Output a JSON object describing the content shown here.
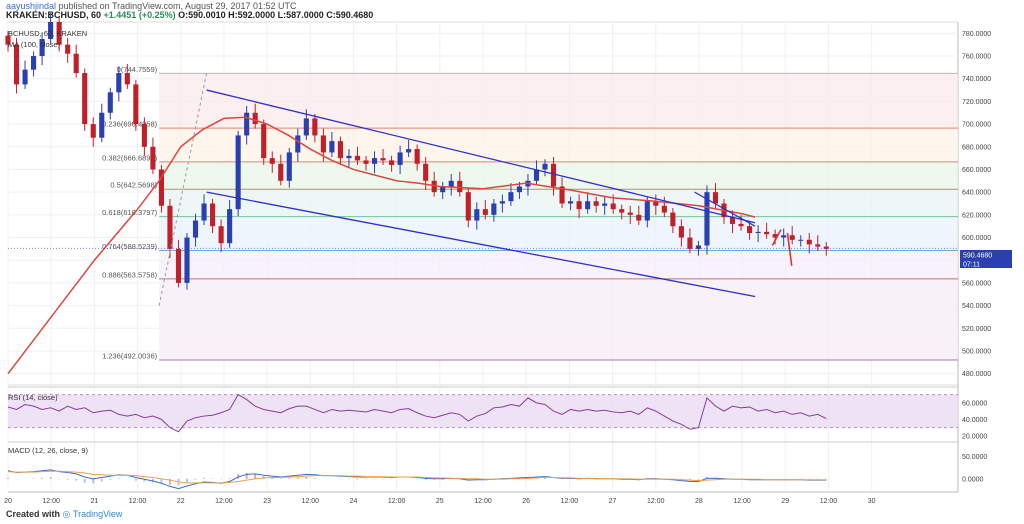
{
  "header": {
    "user": "aayushjindal",
    "published": "published on TradingView.com, August 29, 2017 01:52 UTC",
    "symbol": "KRAKEN:BCHUSD, 60",
    "change": "+1.4451 (+0.25%)",
    "ohlc": "O:590.0010 H:592.0000 L:587.0000 C:590.4680"
  },
  "legend": {
    "main": "BCHUSD, 60, KRAKEN",
    "ma": "MA (100, close)"
  },
  "price_badges": {
    "last": "590.4680",
    "timer": "07:11"
  },
  "footer": {
    "label": "Created with",
    "brand": "TradingView"
  },
  "colors": {
    "up": "#2a3fb0",
    "down": "#c0202a",
    "ma": "#e0453c",
    "channel": "#2d2dd4",
    "rsi": "#8a3a9e",
    "rsi_band": "#eadcf3",
    "macd": "#3a6fd0",
    "signal": "#f0a040"
  },
  "chart_data": [
    {
      "type": "candlestick",
      "title": "BCHUSD, 60, KRAKEN",
      "x_ticks": [
        "20",
        "12:00",
        "21",
        "12:00",
        "22",
        "12:00",
        "23",
        "12:00",
        "24",
        "12:00",
        "25",
        "12:00",
        "26",
        "12:00",
        "27",
        "12:00",
        "28",
        "12:00",
        "29",
        "12:00",
        "30"
      ],
      "y_ticks": [
        480,
        500,
        520,
        540,
        560,
        580,
        600,
        620,
        640,
        660,
        680,
        700,
        720,
        740,
        760,
        780
      ],
      "y_tick_labels": [
        "480.0000",
        "500.0000",
        "520.0000",
        "540.0000",
        "560.0000",
        "580.0000",
        "600.0000",
        "620.0000",
        "640.0000",
        "660.0000",
        "680.0000",
        "700.0000",
        "720.0000",
        "740.0000",
        "760.0000",
        "780.0000"
      ],
      "ylim": [
        470,
        790
      ],
      "xlim": [
        0,
        22
      ],
      "fib_levels": [
        {
          "ratio": "0",
          "value": 744.7559,
          "label": "0(744.7559)"
        },
        {
          "ratio": "0.236",
          "value": 696.4958,
          "label": "0.236(696.4958)"
        },
        {
          "ratio": "0.382",
          "value": 666.6899,
          "label": "0.382(666.6899)"
        },
        {
          "ratio": "0.5",
          "value": 642.5698,
          "label": "0.5(642.5698)"
        },
        {
          "ratio": "0.618",
          "value": 618.3797,
          "label": "0.618(618.3797)"
        },
        {
          "ratio": "0.764",
          "value": 588.5239,
          "label": "0.764(588.5239)"
        },
        {
          "ratio": "0.886",
          "value": 563.5758,
          "label": "0.886(563.5758)"
        },
        {
          "ratio": "1.236",
          "value": 492.0036,
          "label": "1.236(492.0036)"
        }
      ],
      "close": [
        770,
        735,
        748,
        760,
        775,
        790,
        770,
        762,
        745,
        700,
        688,
        710,
        728,
        745,
        735,
        700,
        680,
        660,
        628,
        590,
        560,
        600,
        615,
        630,
        610,
        595,
        625,
        690,
        710,
        700,
        670,
        665,
        650,
        675,
        690,
        705,
        690,
        675,
        685,
        670,
        672,
        668,
        665,
        670,
        668,
        664,
        675,
        678,
        665,
        650,
        640,
        645,
        650,
        640,
        615,
        625,
        620,
        630,
        632,
        640,
        645,
        650,
        660,
        665,
        645,
        630,
        632,
        625,
        632,
        628,
        630,
        625,
        622,
        620,
        615,
        632,
        628,
        622,
        610,
        600,
        590,
        593,
        640,
        630,
        618,
        612,
        610,
        604,
        605,
        603,
        600,
        602,
        598,
        598,
        594,
        592,
        590
      ],
      "candle_x_range": [
        0.0,
        18.95
      ],
      "ma100": {
        "x": [
          0.0,
          2.0,
          3.0,
          3.5,
          4.0,
          4.5,
          5.0,
          5.5,
          6.0,
          6.5,
          7.0,
          7.5,
          8.0,
          8.5,
          9.0,
          9.5,
          10.0,
          11.0,
          12.0,
          13.0,
          14.0,
          15.0,
          16.0,
          17.0,
          17.3
        ],
        "y": [
          480,
          580,
          625,
          650,
          680,
          695,
          705,
          706,
          700,
          690,
          678,
          668,
          660,
          655,
          650,
          648,
          645,
          643,
          648,
          642,
          635,
          632,
          628,
          621,
          618
        ]
      },
      "channel_upper": {
        "x": [
          4.6,
          17.3
        ],
        "y": [
          730,
          613
        ]
      },
      "channel_lower": {
        "x": [
          4.6,
          17.3
        ],
        "y": [
          640,
          548
        ]
      },
      "dashed_trend": {
        "x": [
          3.5,
          4.6
        ],
        "y": [
          540,
          745
        ]
      },
      "arrows": [
        {
          "x": [
            17.7,
            17.9
          ],
          "y": [
            593,
            607
          ]
        },
        {
          "x": [
            18.05,
            18.15
          ],
          "y": [
            604,
            575
          ]
        }
      ]
    },
    {
      "type": "line",
      "title": "RSI (14, close)",
      "y_ticks": [
        20,
        40,
        60
      ],
      "y_tick_labels": [
        "20.0000",
        "40.0000",
        "60.0000"
      ],
      "ylim": [
        15,
        78
      ],
      "band": [
        30,
        70
      ],
      "values": [
        55,
        52,
        58,
        56,
        52,
        54,
        50,
        56,
        52,
        54,
        48,
        50,
        51,
        46,
        44,
        46,
        42,
        44,
        40,
        30,
        25,
        38,
        42,
        44,
        45,
        48,
        52,
        70,
        64,
        56,
        52,
        50,
        48,
        53,
        56,
        56,
        52,
        48,
        52,
        50,
        51,
        50,
        49,
        52,
        50,
        48,
        52,
        53,
        48,
        44,
        42,
        45,
        48,
        46,
        38,
        44,
        47,
        54,
        55,
        58,
        56,
        66,
        60,
        58,
        50,
        46,
        52,
        50,
        52,
        50,
        51,
        49,
        48,
        50,
        46,
        54,
        50,
        44,
        38,
        34,
        28,
        30,
        66,
        56,
        50,
        56,
        54,
        55,
        50,
        52,
        48,
        50,
        46,
        48,
        44,
        46,
        41
      ]
    },
    {
      "type": "line",
      "title": "MACD (12, 26, close, 9)",
      "y_ticks": [
        50,
        0
      ],
      "y_tick_labels": [
        "50.0000",
        "0.0000"
      ],
      "ylim": [
        -25,
        80
      ],
      "macd": [
        18,
        14,
        15,
        16,
        18,
        20,
        16,
        14,
        11,
        4,
        0,
        3,
        6,
        9,
        8,
        3,
        -1,
        -5,
        -10,
        -17,
        -22,
        -16,
        -11,
        -7,
        -8,
        -10,
        -6,
        4,
        10,
        11,
        8,
        6,
        4,
        6,
        8,
        10,
        9,
        7,
        7,
        6,
        5,
        4,
        4,
        4,
        4,
        3,
        4,
        4,
        3,
        1,
        0,
        0,
        1,
        0,
        -3,
        -2,
        -2,
        -1,
        0,
        1,
        2,
        3,
        4,
        5,
        3,
        1,
        1,
        0,
        1,
        0,
        0,
        0,
        -1,
        -1,
        -2,
        0,
        0,
        -1,
        -2,
        -4,
        -6,
        -6,
        1,
        1,
        0,
        -1,
        -1,
        -2,
        -2,
        -2,
        -2,
        -2,
        -2,
        -2,
        -3,
        -3,
        -3
      ],
      "signal": [
        16,
        15,
        15,
        15,
        16,
        17,
        17,
        16,
        15,
        13,
        10,
        9,
        8,
        8,
        8,
        7,
        5,
        3,
        0,
        -3,
        -7,
        -9,
        -9,
        -9,
        -9,
        -9,
        -8,
        -6,
        -3,
        0,
        2,
        3,
        3,
        4,
        5,
        6,
        7,
        7,
        7,
        7,
        6,
        6,
        5,
        5,
        5,
        4,
        4,
        4,
        4,
        3,
        2,
        2,
        1,
        1,
        0,
        0,
        -1,
        -1,
        -1,
        0,
        0,
        1,
        2,
        3,
        3,
        2,
        2,
        1,
        1,
        1,
        0,
        0,
        0,
        0,
        -1,
        -1,
        -1,
        -1,
        -1,
        -2,
        -3,
        -4,
        -3,
        -2,
        -1,
        -1,
        -1,
        -1,
        -1,
        -2,
        -2,
        -2,
        -2,
        -2,
        -2,
        -2,
        -2
      ]
    }
  ]
}
